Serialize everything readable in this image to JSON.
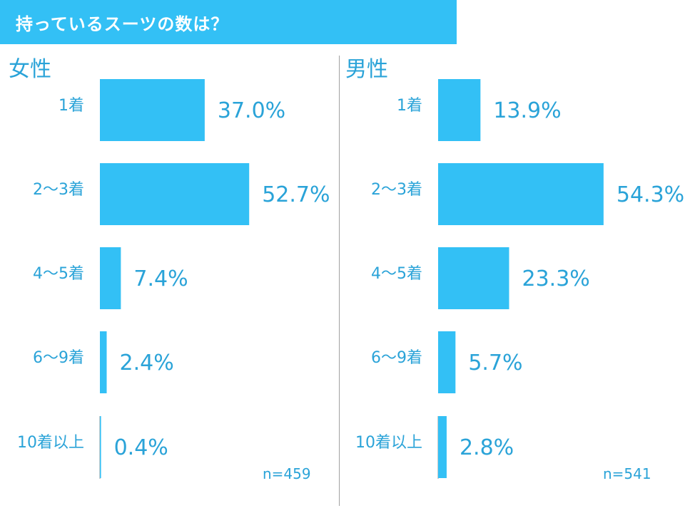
{
  "title": "持っているスーツの数は？",
  "chart_data": [
    {
      "type": "bar",
      "orientation": "horizontal",
      "panel": "女性",
      "categories": [
        "1着",
        "2〜3着",
        "4〜5着",
        "6〜9着",
        "10着以上"
      ],
      "values": [
        37.0,
        52.7,
        7.4,
        2.4,
        0.4
      ],
      "value_labels": [
        "37.0%",
        "52.7%",
        "7.4%",
        "2.4%",
        "0.4%"
      ],
      "n": "n=459",
      "color": "#33c0f5"
    },
    {
      "type": "bar",
      "orientation": "horizontal",
      "panel": "男性",
      "categories": [
        "1着",
        "2〜3着",
        "4〜5着",
        "6〜9着",
        "10着以上"
      ],
      "values": [
        13.9,
        54.3,
        23.3,
        5.7,
        2.8
      ],
      "value_labels": [
        "13.9%",
        "54.3%",
        "23.3%",
        "5.7%",
        "2.8%"
      ],
      "n": "n=541",
      "color": "#33c0f5"
    }
  ]
}
